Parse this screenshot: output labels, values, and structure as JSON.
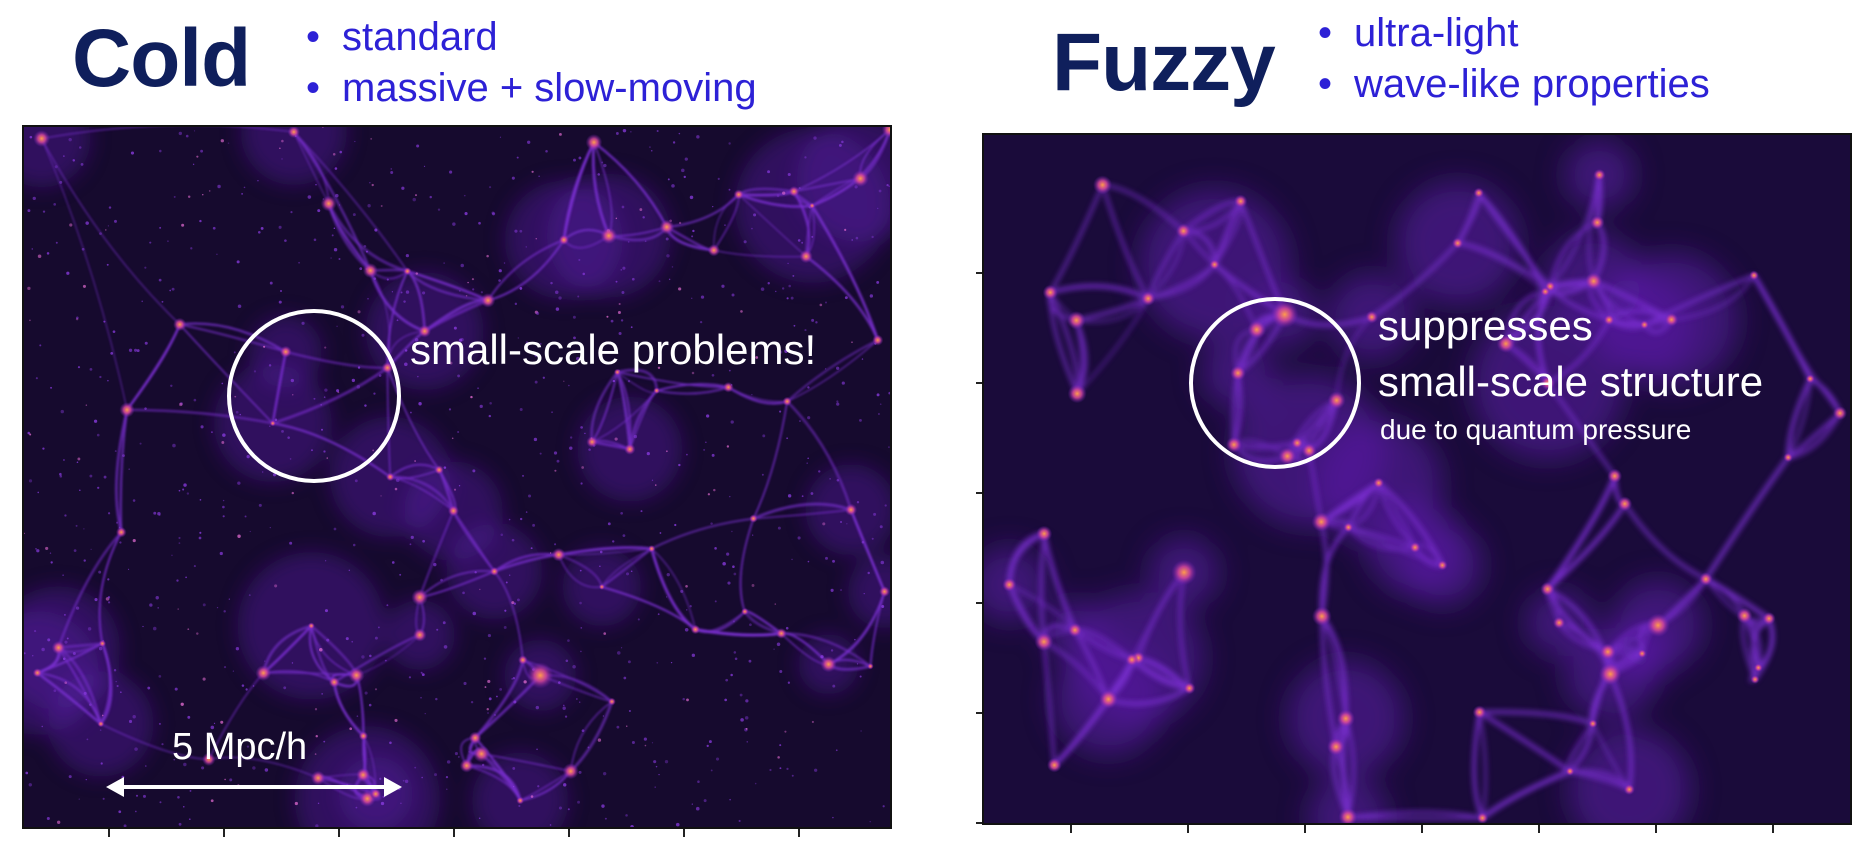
{
  "left": {
    "heading": "Cold",
    "bullets": [
      "standard",
      "massive + slow-moving"
    ],
    "annotation": "small-scale problems!",
    "scalebar_label": "5 Mpc/h"
  },
  "right": {
    "heading": "Fuzzy",
    "bullets": [
      "ultra-light",
      "wave-like properties"
    ],
    "annotation_line1": "suppresses",
    "annotation_line2": "small-scale structure",
    "annotation_small": "due to quantum pressure"
  },
  "colors": {
    "heading": "#0f1f5c",
    "bullet_text": "#2d21d6",
    "panel_background": "#160a2e",
    "filament": "#7a2fd0",
    "halo_core": "#ff9c4a",
    "overlay": "#ffffff"
  }
}
